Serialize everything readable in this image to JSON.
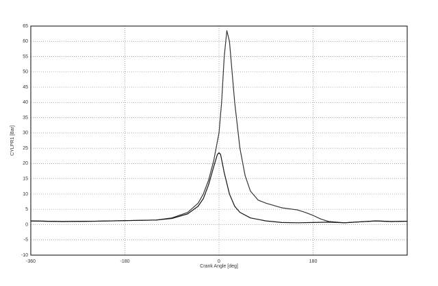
{
  "chart_data": {
    "type": "line",
    "x_label": "Crank Angle [deg]",
    "y_label": "CYLPR1 [Bar]",
    "xlim": [
      -360,
      360
    ],
    "xticks": [
      -360,
      -180,
      0,
      180
    ],
    "ylim": [
      -10,
      65
    ],
    "yticks": [
      -10,
      -5,
      0,
      5,
      10,
      15,
      20,
      25,
      30,
      35,
      40,
      45,
      50,
      55,
      60,
      65
    ],
    "grid": true,
    "series": [
      {
        "color": "#333333",
        "x": [
          -360,
          -300,
          -240,
          -180,
          -120,
          -90,
          -60,
          -40,
          -30,
          -20,
          -10,
          0,
          5,
          10,
          15,
          20,
          25,
          30,
          40,
          50,
          60,
          75,
          90,
          120,
          150,
          165,
          180,
          195,
          210,
          240,
          270,
          300,
          330,
          360
        ],
        "values": [
          1.2,
          1.0,
          1.1,
          1.3,
          1.5,
          2.2,
          4,
          7,
          10,
          14.5,
          21,
          30,
          40,
          55,
          63.5,
          60,
          50,
          40,
          25,
          16,
          11,
          8,
          7,
          5.5,
          4.8,
          4,
          3,
          1.8,
          1,
          0.6,
          0.9,
          1.2,
          1.0,
          1.1
        ]
      },
      {
        "color": "#111111",
        "x": [
          -360,
          -300,
          -240,
          -180,
          -120,
          -90,
          -60,
          -40,
          -30,
          -20,
          -10,
          -3,
          0,
          3,
          10,
          20,
          30,
          40,
          60,
          90,
          120,
          150,
          180,
          210,
          240,
          270,
          300,
          330,
          360
        ],
        "values": [
          1.2,
          1.0,
          1.1,
          1.3,
          1.5,
          2.0,
          3.5,
          6,
          8.5,
          13,
          19,
          23,
          23.5,
          23,
          17,
          10,
          6,
          4,
          2.2,
          1.2,
          0.7,
          0.6,
          0.7,
          0.8,
          0.6,
          0.9,
          1.2,
          1.0,
          1.1
        ]
      }
    ]
  }
}
